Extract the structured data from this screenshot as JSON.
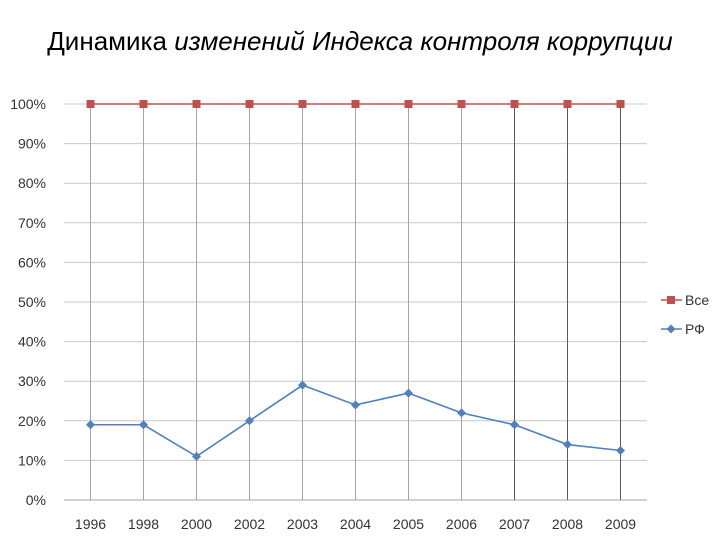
{
  "slide": {
    "title_plain": "Динамика ",
    "title_italic": "изменений Индекса контроля коррупции"
  },
  "chart_data": {
    "type": "line",
    "categories": [
      "1996",
      "1998",
      "2000",
      "2002",
      "2003",
      "2004",
      "2005",
      "2006",
      "2007",
      "2008",
      "2009"
    ],
    "series": [
      {
        "name": "Все",
        "values": [
          100,
          100,
          100,
          100,
          100,
          100,
          100,
          100,
          100,
          100,
          100
        ],
        "color": "#c0504d",
        "marker": "square"
      },
      {
        "name": "РФ",
        "values": [
          19,
          19,
          11,
          20,
          29,
          24,
          27,
          22,
          19,
          14,
          12.5
        ],
        "color": "#4f81bd",
        "marker": "diamond"
      }
    ],
    "ylim": [
      0,
      100
    ],
    "y_ticks": [
      0,
      10,
      20,
      30,
      40,
      50,
      60,
      70,
      80,
      90,
      100
    ],
    "y_tick_labels": [
      "0%",
      "10%",
      "20%",
      "30%",
      "40%",
      "50%",
      "60%",
      "70%",
      "80%",
      "90%",
      "100%"
    ],
    "grid": true,
    "legend": "right"
  }
}
